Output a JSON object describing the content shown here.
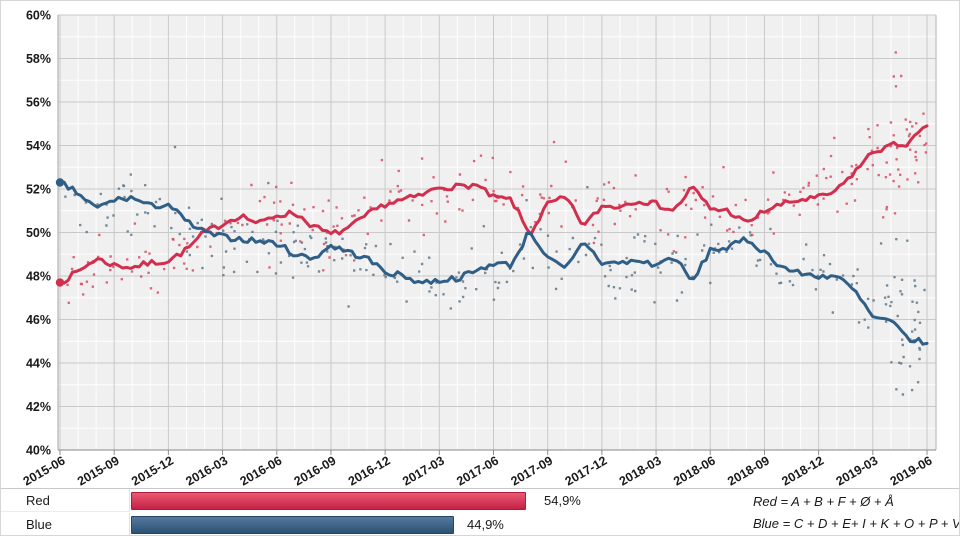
{
  "chart_data": {
    "type": "line",
    "title": "",
    "description": "Two-bloc polling average with individual poll scatter points",
    "x_tick_labels": [
      "2015-06",
      "2015-09",
      "2015-12",
      "2016-03",
      "2016-06",
      "2016-09",
      "2016-12",
      "2017-03",
      "2017-06",
      "2017-09",
      "2017-12",
      "2018-03",
      "2018-06",
      "2018-09",
      "2018-12",
      "2019-03",
      "2019-06"
    ],
    "y_tick_labels": [
      "60%",
      "58%",
      "56%",
      "54%",
      "52%",
      "50%",
      "48%",
      "46%",
      "44%",
      "42%",
      "40%"
    ],
    "ylim": [
      40,
      60
    ],
    "x_months_start": "2015-06",
    "x_months_end": "2019-06",
    "grid": {
      "plot_bg": "#f0f0f0",
      "minor": "#ffffff",
      "major": "#c9c9c9",
      "axis": "#a3a3a3"
    },
    "legend_position": "bottom",
    "series": [
      {
        "name": "Red",
        "color": "#d22e4e",
        "scatter_color": "#d84b64",
        "monthly_values": [
          47.7,
          48.2,
          48.8,
          48.5,
          48.4,
          48.6,
          48.7,
          49.2,
          50.0,
          50.4,
          50.8,
          50.4,
          50.8,
          50.9,
          50.3,
          49.9,
          50.2,
          50.8,
          51.3,
          51.5,
          51.7,
          52.1,
          52.1,
          52.2,
          51.6,
          51.5,
          49.9,
          51.3,
          51.6,
          50.3,
          51.2,
          51.2,
          51.5,
          51.3,
          51.0,
          52.1,
          51.1,
          51.0,
          50.4,
          51.0,
          51.3,
          51.5,
          51.6,
          51.9,
          52.8,
          53.7,
          54.0,
          54.1,
          54.9
        ]
      },
      {
        "name": "Blue",
        "color": "#2f5e87",
        "scatter_color": "#5f7889",
        "monthly_values": [
          52.3,
          51.8,
          51.1,
          51.5,
          51.6,
          51.2,
          51.3,
          50.5,
          50.0,
          49.8,
          49.7,
          49.6,
          49.5,
          49.0,
          48.8,
          49.4,
          49.1,
          48.8,
          48.2,
          48.0,
          47.7,
          47.8,
          47.9,
          48.2,
          48.6,
          48.5,
          50.1,
          48.8,
          48.3,
          49.6,
          48.6,
          48.6,
          48.7,
          48.5,
          48.9,
          47.7,
          49.2,
          49.3,
          49.7,
          49.1,
          48.4,
          48.1,
          48.0,
          48.0,
          47.3,
          46.1,
          45.9,
          45.1,
          44.9
        ]
      }
    ],
    "scatter": {
      "description": "individual poll results scattered around each trend line",
      "typical_spread_pct": 0.85,
      "end_spread_pct": 1.8
    }
  },
  "legend": {
    "rows": [
      {
        "label": "Red",
        "value": 54.9,
        "value_label": "54,9%"
      },
      {
        "label": "Blue",
        "value": 44.9,
        "value_label": "44,9%"
      }
    ],
    "formulas": [
      "Red = A + B + F + Ø + Å",
      "Blue = C + D + E+ I + K + O + P + V"
    ]
  }
}
